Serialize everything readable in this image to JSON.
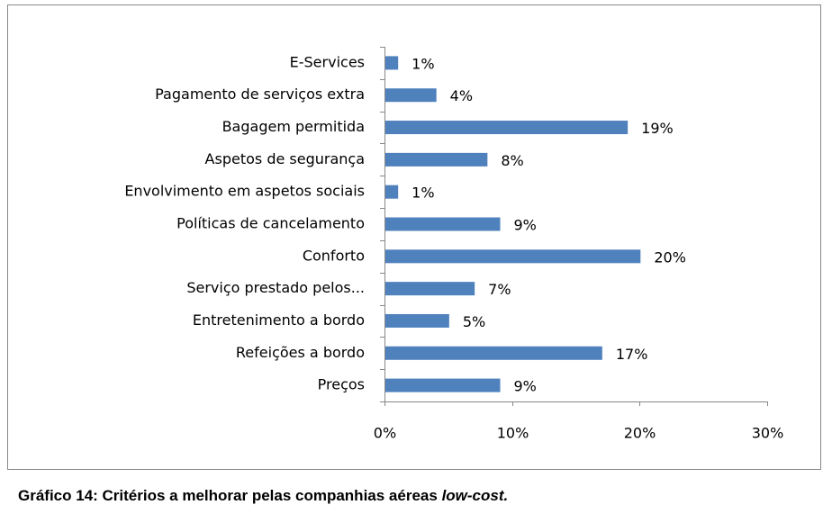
{
  "chart_data": {
    "type": "barh",
    "categories": [
      "E-Services",
      "Pagamento de serviços extra",
      "Bagagem permitida",
      "Aspetos de segurança",
      "Envolvimento em aspetos sociais",
      "Políticas de cancelamento",
      "Conforto",
      "Serviço prestado pelos...",
      "Entretenimento a bordo",
      "Refeições a bordo",
      "Preços"
    ],
    "values": [
      1,
      4,
      19,
      8,
      1,
      9,
      20,
      7,
      5,
      17,
      9
    ],
    "value_labels": [
      "1%",
      "4%",
      "19%",
      "8%",
      "1%",
      "9%",
      "20%",
      "7%",
      "5%",
      "17%",
      "9%"
    ],
    "color": "#4f81bd",
    "xlim": [
      0,
      30
    ],
    "xticks": [
      {
        "value": 0,
        "label": "0%"
      },
      {
        "value": 10,
        "label": "10%"
      },
      {
        "value": 20,
        "label": "20%"
      },
      {
        "value": 30,
        "label": "30%"
      }
    ],
    "grid": false
  },
  "caption": {
    "text": "Gráfico 14: Critérios a melhorar pelas companhias aéreas",
    "emphasis": "low-cost."
  }
}
